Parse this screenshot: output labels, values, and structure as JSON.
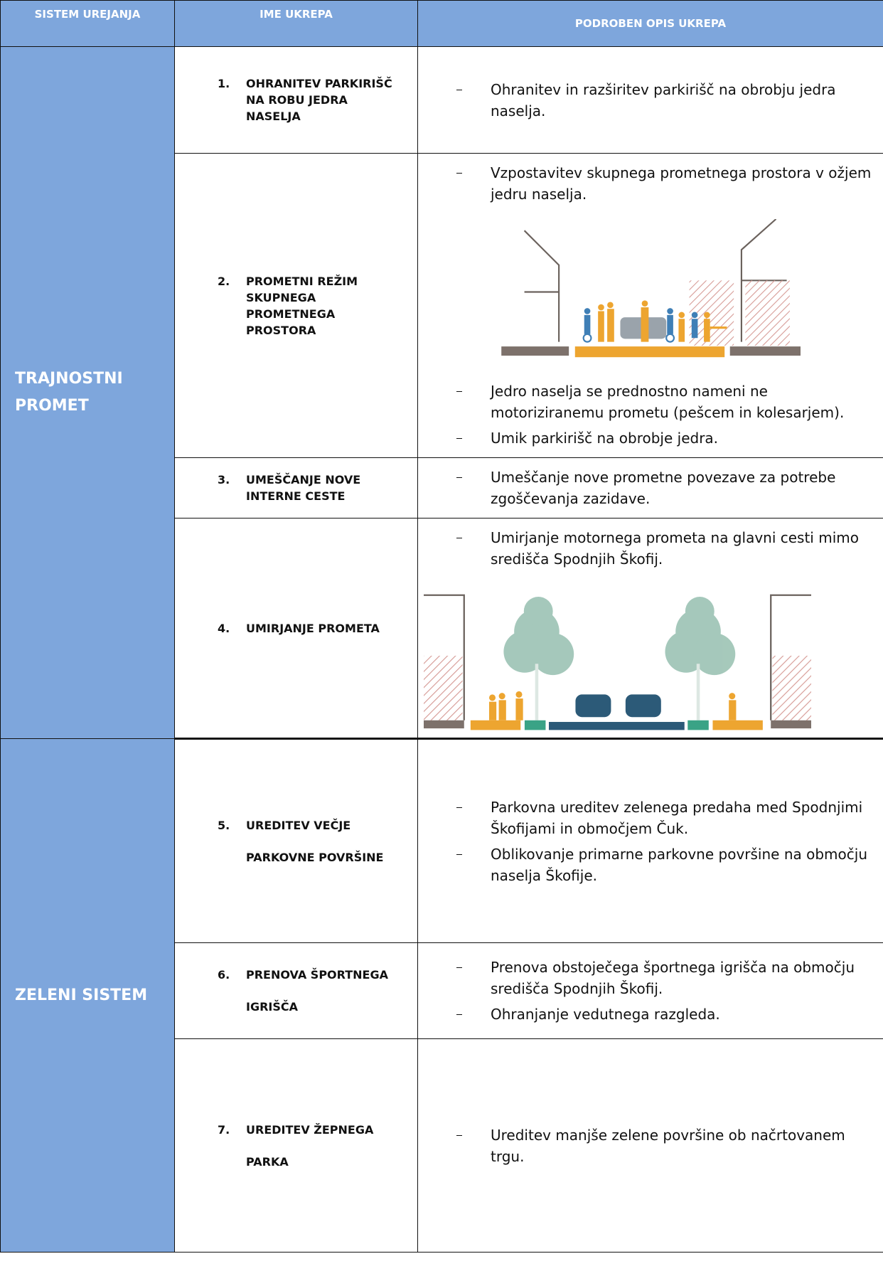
{
  "table": {
    "headers": [
      "SISTEM UREJANJA",
      "IME UKREPA",
      "PODROBEN OPIS UKREPA"
    ],
    "groups": [
      {
        "label": "TRAJNOSTNI PROMET",
        "rows": [
          {
            "number": "1.",
            "name": "OHRANITEV PARKIRIŠČ NA ROBU JEDRA NASELJA",
            "bullets": [
              "Ohranitev in razširitev parkirišč na obrobju jedra naselja."
            ]
          },
          {
            "number": "2.",
            "name": "PROMETNI REŽIM SKUPNEGA PROMETNEGA PROSTORA",
            "bullets": [
              "Vzpostavitev skupnega prometnega prostora v ožjem jedru naselja."
            ],
            "bullets_after": [
              "Jedro naselja se prednostno nameni ne motoriziranemu prometu (pešcem in kolesarjem).",
              "Umik parkirišč na obrobje jedra."
            ]
          },
          {
            "number": "3.",
            "name": "UMEŠČANJE NOVE INTERNE CESTE",
            "bullets": [
              "Umeščanje nove prometne povezave za potrebe zgoščevanja zazidave."
            ]
          },
          {
            "number": "4.",
            "name": "UMIRJANJE PROMETA",
            "bullets": [
              "Umirjanje motornega prometa na glavni cesti mimo središča Spodnjih Škofij."
            ]
          }
        ]
      },
      {
        "label": "ZELENI SISTEM",
        "rows": [
          {
            "number": "5.",
            "name": "UREDITEV VEČJE PARKOVNE POVRŠINE",
            "bullets": [
              "Parkovna ureditev zelenega predaha med Spodnjimi Škofijami in območjem Čuk.",
              "Oblikovanje primarne parkovne površine na območju naselja Škofije."
            ]
          },
          {
            "number": "6.",
            "name": "PRENOVA ŠPORTNEGA IGRIŠČA",
            "bullets": [
              "Prenova obstoječega športnega igrišča na območju središča Spodnjih Škofij.",
              "Ohranjanje vedutnega razgleda."
            ]
          },
          {
            "number": "7.",
            "name": "UREDITEV ŽEPNEGA PARKA",
            "bullets": [
              "Ureditev manjše zelene površine ob načrtovanem trgu."
            ]
          }
        ]
      }
    ]
  }
}
